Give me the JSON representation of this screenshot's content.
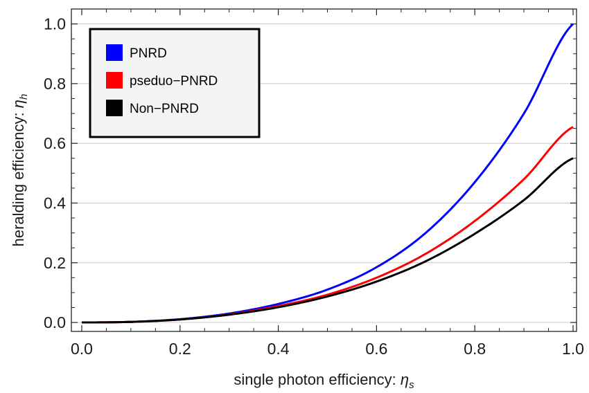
{
  "chart_data": {
    "type": "line",
    "xlabel": {
      "text": "single photon efficiency: ",
      "sym": "η",
      "sub": "s"
    },
    "ylabel": {
      "text": "heralding efficiency: ",
      "sym": "η",
      "sub": "h"
    },
    "xlim": [
      0.0,
      1.0
    ],
    "ylim": [
      -0.03,
      1.05
    ],
    "xticks": [
      0.0,
      0.2,
      0.4,
      0.6,
      0.8,
      1.0
    ],
    "xtick_labels": [
      "0.0",
      "0.2",
      "0.4",
      "0.6",
      "0.8",
      "1.0"
    ],
    "yticks": [
      0.0,
      0.2,
      0.4,
      0.6,
      0.8,
      1.0
    ],
    "ytick_labels": [
      "0.0",
      "0.2",
      "0.4",
      "0.6",
      "0.8",
      "1.0"
    ],
    "grid": "horizontal",
    "legend_position": "top-left",
    "x": [
      0.0,
      0.1,
      0.2,
      0.3,
      0.4,
      0.5,
      0.6,
      0.7,
      0.8,
      0.9,
      1.0
    ],
    "series": [
      {
        "name": "PNRD",
        "color": "#0000ff",
        "values": [
          0.0,
          0.002,
          0.011,
          0.03,
          0.062,
          0.11,
          0.185,
          0.3,
          0.47,
          0.7,
          1.0
        ]
      },
      {
        "name": "pseduo−PNRD",
        "color": "#ff0000",
        "values": [
          0.0,
          0.002,
          0.01,
          0.027,
          0.055,
          0.093,
          0.15,
          0.23,
          0.34,
          0.48,
          0.655
        ]
      },
      {
        "name": "Non−PNRD",
        "color": "#000000",
        "values": [
          0.0,
          0.002,
          0.01,
          0.026,
          0.051,
          0.087,
          0.137,
          0.205,
          0.297,
          0.41,
          0.55
        ]
      }
    ]
  }
}
